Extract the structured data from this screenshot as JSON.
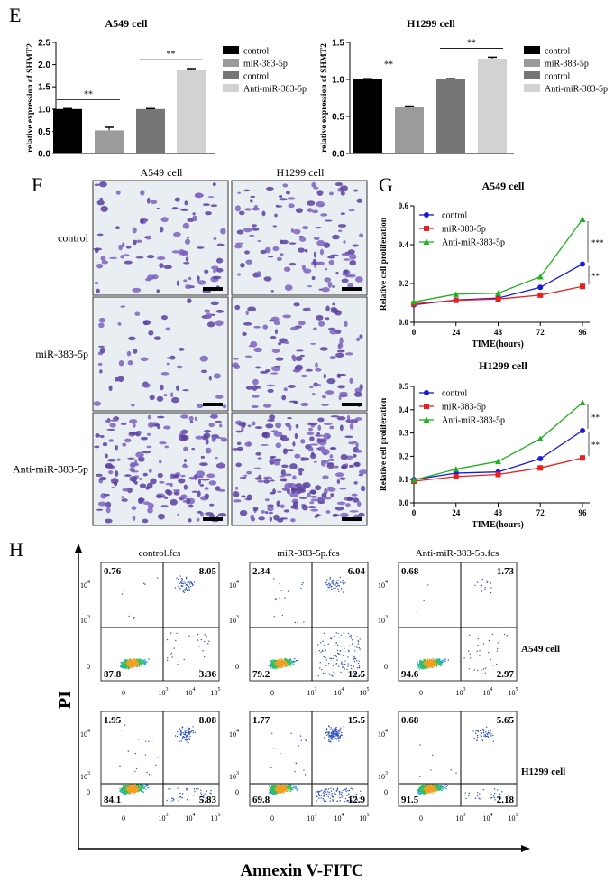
{
  "panels": {
    "E": "E",
    "F": "F",
    "G": "G",
    "H": "H"
  },
  "chart_data": [
    {
      "type": "bar",
      "panel": "E",
      "title": "A549 cell",
      "ylabel": "relative expression of SHMT2",
      "ylim": [
        0,
        2.5
      ],
      "yticks": [
        "0.0",
        "0.5",
        "1.0",
        "1.5",
        "2.0",
        "2.5"
      ],
      "categories": [
        "control",
        "miR-383-5p",
        "control",
        "Anti-miR-383-5p"
      ],
      "values": [
        1.0,
        0.52,
        1.0,
        1.88
      ],
      "errors": [
        0.01,
        0.07,
        0.01,
        0.03
      ],
      "colors": [
        "#000000",
        "#9b9b9b",
        "#767676",
        "#d2d2d2"
      ],
      "significance": [
        {
          "pair": [
            0,
            1
          ],
          "label": "**"
        },
        {
          "pair": [
            2,
            3
          ],
          "label": "**"
        }
      ]
    },
    {
      "type": "bar",
      "panel": "E",
      "title": "H1299 cell",
      "ylabel": "relative expression of SHMT2",
      "ylim": [
        0,
        1.5
      ],
      "yticks": [
        "0.0",
        "0.5",
        "1.0",
        "1.5"
      ],
      "categories": [
        "control",
        "miR-383-5p",
        "control",
        "Anti-miR-383-5p"
      ],
      "values": [
        1.0,
        0.63,
        1.0,
        1.28
      ],
      "errors": [
        0.01,
        0.01,
        0.01,
        0.02
      ],
      "colors": [
        "#000000",
        "#9b9b9b",
        "#767676",
        "#d2d2d2"
      ],
      "significance": [
        {
          "pair": [
            0,
            1
          ],
          "label": "**"
        },
        {
          "pair": [
            2,
            3
          ],
          "label": "**"
        }
      ]
    },
    {
      "type": "line",
      "panel": "G",
      "title": "A549 cell",
      "xlabel": "TIME(hours)",
      "ylabel": "Relative cell proliferation",
      "x": [
        0,
        24,
        48,
        72,
        96
      ],
      "ylim": [
        0,
        0.6
      ],
      "yticks": [
        "0.0",
        "0.2",
        "0.4",
        "0.6"
      ],
      "series": [
        {
          "name": "control",
          "color": "#1a1adc",
          "marker": "circle",
          "values": [
            0.09,
            0.115,
            0.125,
            0.18,
            0.3
          ]
        },
        {
          "name": "miR-383-5p",
          "color": "#e82020",
          "marker": "square",
          "values": [
            0.095,
            0.113,
            0.12,
            0.14,
            0.185
          ]
        },
        {
          "name": "Anti-miR-383-5p",
          "color": "#20b020",
          "marker": "triangle",
          "values": [
            0.105,
            0.145,
            0.15,
            0.235,
            0.53
          ]
        }
      ],
      "significance": [
        {
          "from": 0.53,
          "to": 0.3,
          "label": "***"
        },
        {
          "from": 0.3,
          "to": 0.185,
          "label": "**"
        }
      ]
    },
    {
      "type": "line",
      "panel": "G",
      "title": "H1299 cell",
      "xlabel": "TIME(hours)",
      "ylabel": "Relative cell proliferation",
      "x": [
        0,
        24,
        48,
        72,
        96
      ],
      "ylim": [
        0,
        0.5
      ],
      "yticks": [
        "0.0",
        "0.1",
        "0.2",
        "0.3",
        "0.4",
        "0.5"
      ],
      "series": [
        {
          "name": "control",
          "color": "#1a1adc",
          "marker": "circle",
          "values": [
            0.1,
            0.128,
            0.133,
            0.19,
            0.31
          ]
        },
        {
          "name": "miR-383-5p",
          "color": "#e82020",
          "marker": "square",
          "values": [
            0.093,
            0.113,
            0.122,
            0.15,
            0.193
          ]
        },
        {
          "name": "Anti-miR-383-5p",
          "color": "#20b020",
          "marker": "triangle",
          "values": [
            0.098,
            0.145,
            0.178,
            0.275,
            0.43
          ]
        }
      ],
      "significance": [
        {
          "from": 0.43,
          "to": 0.31,
          "label": "**"
        },
        {
          "from": 0.31,
          "to": 0.193,
          "label": "**"
        }
      ]
    }
  ],
  "transwell": {
    "columns": [
      "A549 cell",
      "H1299 cell"
    ],
    "rows": [
      "control",
      "miR-383-5p",
      "Anti-miR-383-5p"
    ]
  },
  "flow": {
    "xlabel": "Annexin V-FITC",
    "ylabel": "PI",
    "columns": [
      "control.fcs",
      "miR-383-5p.fcs",
      "Anti-miR-383-5p.fcs"
    ],
    "rows": [
      "A549 cell",
      "H1299 cell"
    ],
    "xticks": [
      "0",
      "10",
      "10",
      "10"
    ],
    "xexp": [
      "",
      "3",
      "4",
      "5"
    ],
    "yticks": [
      "0",
      "10",
      "10"
    ],
    "yexp": [
      "",
      "3",
      "4"
    ],
    "quadrants": [
      [
        [
          "0.76",
          "8.05",
          "87.8",
          "3.36"
        ],
        [
          "2.34",
          "6.04",
          "79.2",
          "12.5"
        ],
        [
          "0.68",
          "1.73",
          "94.6",
          "2.97"
        ]
      ],
      [
        [
          "1.95",
          "8.08",
          "84.1",
          "5.83"
        ],
        [
          "1.77",
          "15.5",
          "69.8",
          "12.9"
        ],
        [
          "0.68",
          "5.65",
          "91.5",
          "2.18"
        ]
      ]
    ]
  }
}
